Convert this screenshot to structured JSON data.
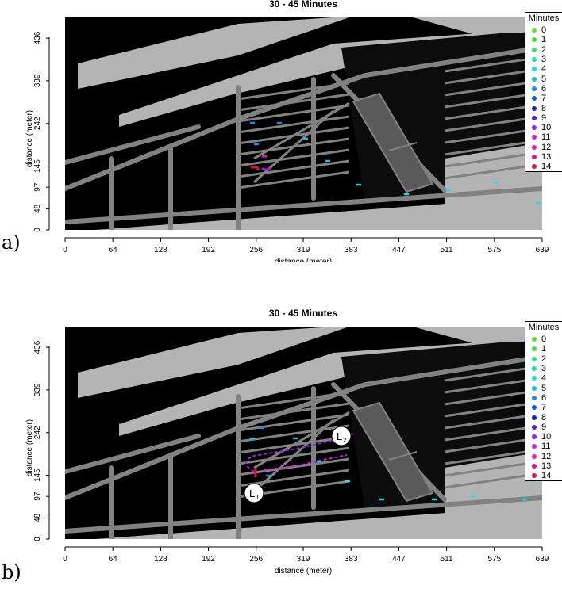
{
  "panels": [
    {
      "id": "a",
      "title": "30 - 45 Minutes",
      "panel_label": "a)",
      "xlabel": "distance (meter)",
      "ylabel": "distance (meter)",
      "x_ticks": [
        "0",
        "64",
        "128",
        "192",
        "256",
        "319",
        "383",
        "447",
        "511",
        "575",
        "639"
      ],
      "y_ticks": [
        "0",
        "48",
        "97",
        "145",
        "242",
        "339",
        "436"
      ],
      "legend_title": "Minutes",
      "markers": []
    },
    {
      "id": "b",
      "title": "30 - 45 Minutes",
      "panel_label": "b)",
      "xlabel": "distance (meter)",
      "ylabel": "distance (meter)",
      "x_ticks": [
        "0",
        "64",
        "128",
        "192",
        "256",
        "319",
        "383",
        "447",
        "511",
        "575",
        "639"
      ],
      "y_ticks": [
        "0",
        "48",
        "97",
        "145",
        "242",
        "339",
        "436"
      ],
      "legend_title": "Minutes",
      "markers": [
        "L",
        "L"
      ],
      "marker_subscripts": [
        "1",
        "2"
      ]
    }
  ],
  "legend": {
    "items": [
      "0",
      "1",
      "2",
      "3",
      "4",
      "5",
      "6",
      "7",
      "8",
      "9",
      "10",
      "11",
      "12",
      "13",
      "14"
    ],
    "colors": [
      "#66dd33",
      "#44dd44",
      "#33dd77",
      "#22ddaa",
      "#22dddd",
      "#22bbdd",
      "#2288ee",
      "#1155ee",
      "#1122cc",
      "#5522cc",
      "#9922dd",
      "#cc22dd",
      "#dd22bb",
      "#dd1188",
      "#dd1144"
    ]
  },
  "colors": {
    "background": "#000000",
    "land": "#b4b4b4",
    "roads": "#828282",
    "building": "#5a5a5a"
  }
}
